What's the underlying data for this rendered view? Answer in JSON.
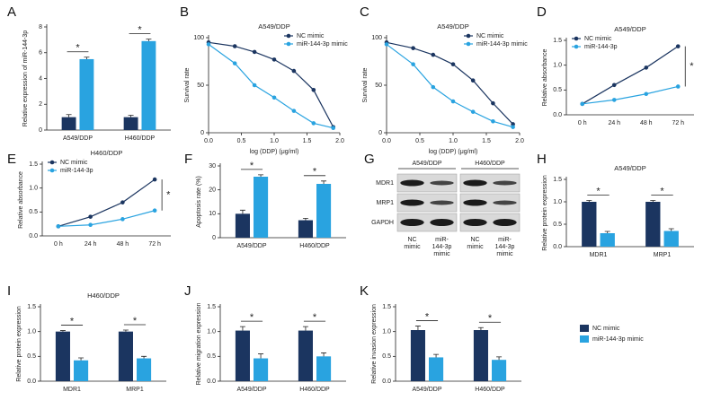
{
  "chart_data": [
    {
      "panel": "A",
      "type": "bar",
      "ylabel": "Relative expression of miR-144-3p",
      "categories": [
        "A549/DDP",
        "H460/DDP"
      ],
      "series": [
        {
          "color": "#1b3560",
          "values": [
            1.0,
            1.0
          ],
          "errors": [
            0.2,
            0.15
          ]
        },
        {
          "color": "#29a3e0",
          "values": [
            5.5,
            6.9
          ],
          "errors": [
            0.15,
            0.15
          ]
        }
      ],
      "ylim": [
        0,
        8
      ],
      "yticks": [
        0,
        2,
        4,
        6,
        8
      ],
      "annotations": [
        "*",
        "*"
      ]
    },
    {
      "panel": "B",
      "type": "line",
      "title": "A549/DDP",
      "xlabel": "log (DDP) (μg/ml)",
      "ylabel": "Survival rate",
      "legend": "upper right",
      "x": [
        0,
        0.4,
        0.7,
        1.0,
        1.3,
        1.6,
        1.9
      ],
      "series": [
        {
          "name": "NC mimic",
          "color": "#1b3560",
          "values": [
            95,
            91,
            85,
            77,
            65,
            45,
            6
          ]
        },
        {
          "name": "miR-144-3p mimic",
          "color": "#29a3e0",
          "values": [
            93,
            73,
            50,
            37,
            23,
            10,
            5
          ]
        }
      ],
      "xlim": [
        0,
        2
      ],
      "xticks": [
        {
          "value": 0,
          "label": "0.0"
        },
        0.5,
        {
          "value": 1,
          "label": "1.0"
        },
        1.5,
        {
          "value": 2,
          "label": "2.0"
        }
      ],
      "ylim": [
        0,
        100
      ],
      "yticks": [
        0,
        50,
        100
      ]
    },
    {
      "panel": "C",
      "type": "line",
      "title": "A549/DDP",
      "xlabel": "log (DDP) (μg/ml)",
      "ylabel": "Survival rate",
      "legend": "upper right",
      "x": [
        0,
        0.4,
        0.7,
        1.0,
        1.3,
        1.6,
        1.9
      ],
      "series": [
        {
          "name": "NC mimic",
          "color": "#1b3560",
          "values": [
            95,
            89,
            82,
            72,
            55,
            31,
            9
          ]
        },
        {
          "name": "miR-144-3p mimic",
          "color": "#29a3e0",
          "values": [
            93,
            72,
            48,
            33,
            22,
            12,
            6
          ]
        }
      ],
      "xlim": [
        0,
        2
      ],
      "xticks": [
        {
          "value": 0,
          "label": "0.0"
        },
        0.5,
        {
          "value": 1,
          "label": "1.0"
        },
        1.5,
        {
          "value": 2,
          "label": "2.0"
        }
      ],
      "ylim": [
        0,
        100
      ],
      "yticks": [
        0,
        50,
        100
      ]
    },
    {
      "panel": "D",
      "type": "line",
      "title": "A549/DDP",
      "ylabel": "Relative absorbance",
      "legend": "upper left",
      "categories": [
        "0 h",
        "24 h",
        "48 h",
        "72 h"
      ],
      "series": [
        {
          "name": "NC mimic",
          "color": "#1b3560",
          "values": [
            0.22,
            0.6,
            0.95,
            1.38
          ]
        },
        {
          "name": "miR-144-3p",
          "color": "#29a3e0",
          "values": [
            0.22,
            0.3,
            0.42,
            0.57
          ]
        }
      ],
      "ylim": [
        0,
        1.5
      ],
      "yticks": [
        {
          "value": 0,
          "label": "0.0"
        },
        0.5,
        {
          "value": 1,
          "label": "1.0"
        },
        1.5
      ],
      "annotation": "*"
    },
    {
      "panel": "E",
      "type": "line",
      "title": "H460/DDP",
      "ylabel": "Relative absorbance",
      "legend": "upper left",
      "categories": [
        "0 h",
        "24 h",
        "48 h",
        "72 h"
      ],
      "series": [
        {
          "name": "NC mimic",
          "color": "#1b3560",
          "values": [
            0.2,
            0.4,
            0.7,
            1.18
          ]
        },
        {
          "name": "miR-144-3p",
          "color": "#29a3e0",
          "values": [
            0.2,
            0.23,
            0.35,
            0.53
          ]
        }
      ],
      "ylim": [
        0,
        1.5
      ],
      "yticks": [
        {
          "value": 0,
          "label": "0.0"
        },
        0.5,
        {
          "value": 1,
          "label": "1.0"
        },
        1.5
      ],
      "annotation": "*"
    },
    {
      "panel": "F",
      "type": "bar",
      "ylabel": "Apoptosis rate (%)",
      "categories": [
        "A549/DDP",
        "H460/DDP"
      ],
      "series": [
        {
          "color": "#1b3560",
          "values": [
            10,
            7.3
          ],
          "errors": [
            1.5,
            0.8
          ]
        },
        {
          "color": "#29a3e0",
          "values": [
            25.5,
            22.5
          ],
          "errors": [
            0.8,
            1.2
          ]
        }
      ],
      "ylim": [
        0,
        30
      ],
      "yticks": [
        0,
        10,
        20,
        30
      ],
      "annotations": [
        "*",
        "*"
      ]
    },
    {
      "panel": "G",
      "type": "blot",
      "groups": [
        "A549/DDP",
        "H460/DDP"
      ],
      "rows": [
        "MDR1",
        "MRP1",
        "GAPDH"
      ],
      "lanes": [
        [
          "NC",
          "mimic"
        ],
        [
          "miR-",
          "144-3p",
          "mimic"
        ]
      ]
    },
    {
      "panel": "H",
      "type": "bar",
      "title": "A549/DDP",
      "ylabel": "Relative protein expression",
      "categories": [
        "MDR1",
        "MRP1"
      ],
      "series": [
        {
          "color": "#1b3560",
          "values": [
            1.0,
            1.0
          ],
          "errors": [
            0.03,
            0.03
          ]
        },
        {
          "color": "#29a3e0",
          "values": [
            0.3,
            0.35
          ],
          "errors": [
            0.04,
            0.05
          ]
        }
      ],
      "ylim": [
        0,
        1.5
      ],
      "yticks": [
        {
          "value": 0,
          "label": "0.0"
        },
        0.5,
        {
          "value": 1,
          "label": "1.0"
        },
        1.5
      ],
      "annotations": [
        "*",
        "*"
      ]
    },
    {
      "panel": "I",
      "type": "bar",
      "title": "H460/DDP",
      "ylabel": "Relative protein expression",
      "categories": [
        "MDR1",
        "MRP1"
      ],
      "series": [
        {
          "color": "#1b3560",
          "values": [
            1.0,
            1.0
          ],
          "errors": [
            0.02,
            0.03
          ]
        },
        {
          "color": "#29a3e0",
          "values": [
            0.42,
            0.46
          ],
          "errors": [
            0.05,
            0.04
          ]
        }
      ],
      "ylim": [
        0,
        1.5
      ],
      "yticks": [
        {
          "value": 0,
          "label": "0.0"
        },
        0.5,
        {
          "value": 1,
          "label": "1.0"
        },
        1.5
      ],
      "annotations": [
        "*",
        "*"
      ]
    },
    {
      "panel": "J",
      "type": "bar",
      "ylabel": "Relative migration expression",
      "categories": [
        "A549/DDP",
        "H460/DDP"
      ],
      "series": [
        {
          "color": "#1b3560",
          "values": [
            1.02,
            1.02
          ],
          "errors": [
            0.08,
            0.08
          ]
        },
        {
          "color": "#29a3e0",
          "values": [
            0.46,
            0.5
          ],
          "errors": [
            0.09,
            0.07
          ]
        }
      ],
      "ylim": [
        0,
        1.5
      ],
      "yticks": [
        {
          "value": 0,
          "label": "0.0"
        },
        0.5,
        {
          "value": 1,
          "label": "1.0"
        },
        1.5
      ],
      "annotations": [
        "*",
        "*"
      ]
    },
    {
      "panel": "K",
      "type": "bar",
      "ylabel": "Relative invasion expression",
      "categories": [
        "A549/DDP",
        "H460/DDP"
      ],
      "series": [
        {
          "color": "#1b3560",
          "values": [
            1.03,
            1.03
          ],
          "errors": [
            0.08,
            0.05
          ]
        },
        {
          "color": "#29a3e0",
          "values": [
            0.48,
            0.43
          ],
          "errors": [
            0.06,
            0.06
          ]
        }
      ],
      "ylim": [
        0,
        1.5
      ],
      "yticks": [
        {
          "value": 0,
          "label": "0.0"
        },
        0.5,
        {
          "value": 1,
          "label": "1.0"
        },
        1.5
      ],
      "annotations": [
        "*",
        "*"
      ]
    }
  ],
  "legend": [
    {
      "name": "NC mimic",
      "color": "#1b3560"
    },
    {
      "name": "miR-144-3p mimic",
      "color": "#29a3e0"
    }
  ]
}
